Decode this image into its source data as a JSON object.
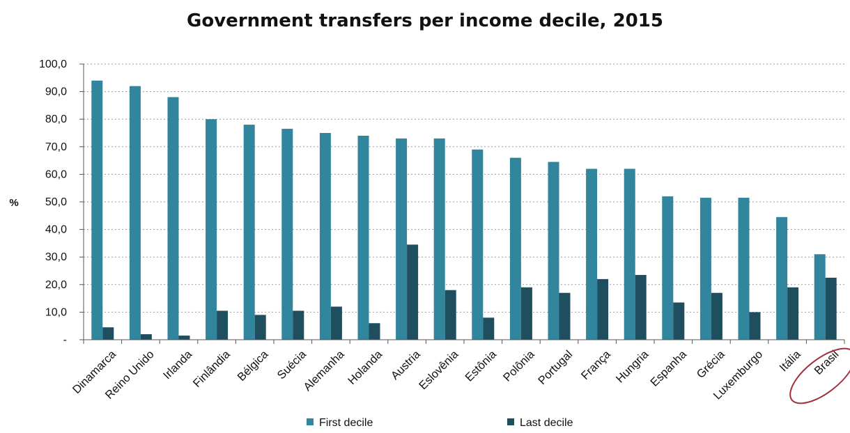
{
  "chart_data": {
    "type": "bar",
    "title": "Government transfers per income decile, 2015",
    "ylabel": "%",
    "xlabel": "",
    "ylim": [
      0,
      100
    ],
    "yticks": [
      0,
      10,
      20,
      30,
      40,
      50,
      60,
      70,
      80,
      90,
      100
    ],
    "ytick_labels": [
      "-",
      "10,0",
      "20,0",
      "30,0",
      "40,0",
      "50,0",
      "60,0",
      "70,0",
      "80,0",
      "90,0",
      "100,0"
    ],
    "grid": "horizontal dotted",
    "legend_position": "bottom",
    "categories": [
      "Dinamarca",
      "Reino Unido",
      "Irlanda",
      "Finlândia",
      "Bélgica",
      "Suécia",
      "Alemanha",
      "Holanda",
      "Austria",
      "Eslovênia",
      "Estônia",
      "Polônia",
      "Portugal",
      "França",
      "Hungria",
      "Espanha",
      "Grécia",
      "Luxemburgo",
      "Itália",
      "Brasil"
    ],
    "series": [
      {
        "name": "First decile",
        "color": "#31859c",
        "values": [
          94,
          92,
          88,
          80,
          78,
          76.5,
          75,
          74,
          73,
          73,
          69,
          66,
          64.5,
          62,
          62,
          52,
          51.5,
          51.5,
          44.5,
          31
        ]
      },
      {
        "name": "Last decile",
        "color": "#1f4e5f",
        "values": [
          4.5,
          2,
          1.5,
          10.5,
          9,
          10.5,
          12,
          6,
          34.5,
          18,
          8,
          19,
          17,
          22,
          23.5,
          13.5,
          17,
          10,
          19,
          22.5
        ]
      }
    ],
    "highlight": {
      "category": "Brasil",
      "shape": "ellipse",
      "color": "#a03040"
    }
  }
}
